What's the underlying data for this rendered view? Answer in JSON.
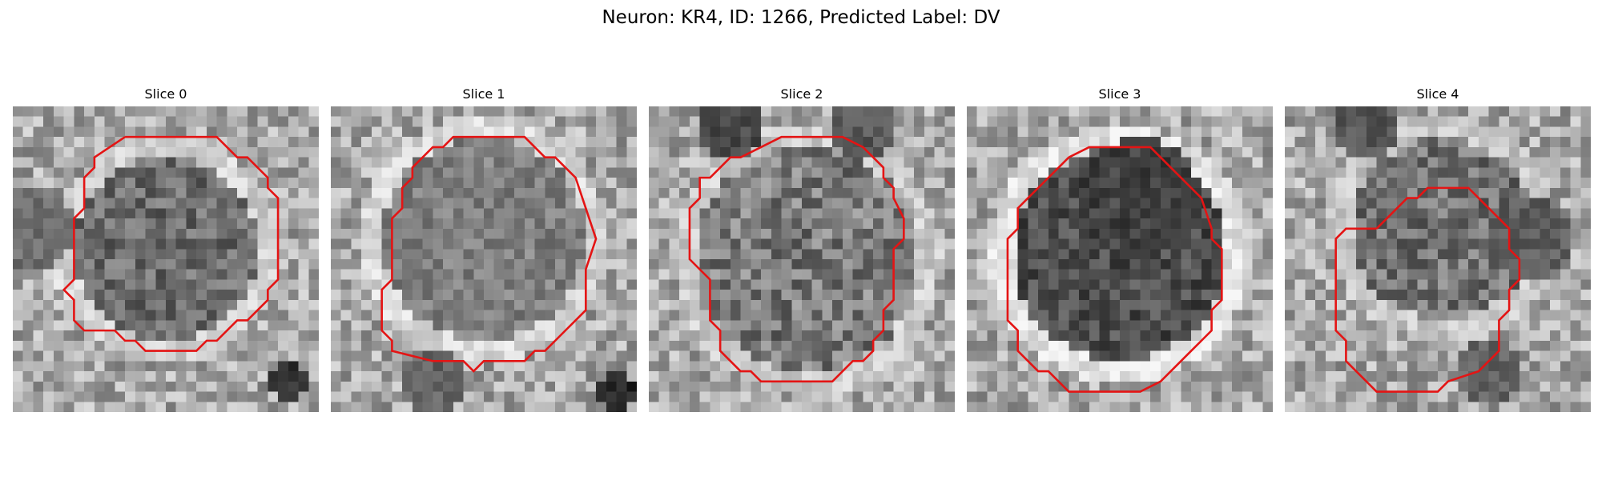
{
  "figure": {
    "title": "Neuron: KR4, ID: 1266, Predicted Label: DV"
  },
  "panels": [
    {
      "title": "Slice 0"
    },
    {
      "title": "Slice 1"
    },
    {
      "title": "Slice 2"
    },
    {
      "title": "Slice 3"
    },
    {
      "title": "Slice 4"
    }
  ],
  "colors": {
    "outline": "#e41414",
    "colormap": "grayscale"
  }
}
